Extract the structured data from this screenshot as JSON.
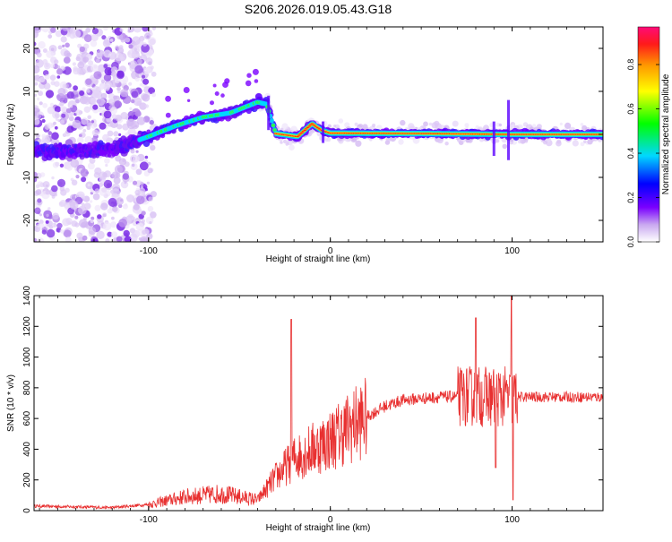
{
  "title": "S206.2026.019.05.43.G18",
  "charts": [
    {
      "type": "heatmap",
      "xlabel": "Height of straight line (km)",
      "ylabel": "Frequency (Hz)",
      "xlim": [
        -163,
        150
      ],
      "ylim": [
        -25,
        25
      ],
      "xticks": [
        -100,
        0,
        100
      ],
      "yticks": [
        -20,
        -10,
        0,
        10,
        20
      ],
      "colorbar": {
        "label": "Normalized spectral amplitude",
        "range": [
          0,
          0.97
        ],
        "ticks": [
          "0.0",
          "0.2",
          "0.4",
          "0.6",
          "0.8"
        ]
      },
      "ridge": [
        {
          "x": -163,
          "y": -4
        },
        {
          "x": -120,
          "y": -3.5
        },
        {
          "x": -100,
          "y": -0.5
        },
        {
          "x": -85,
          "y": 2
        },
        {
          "x": -70,
          "y": 4
        },
        {
          "x": -55,
          "y": 5
        },
        {
          "x": -40,
          "y": 7.5
        },
        {
          "x": -35,
          "y": 7
        },
        {
          "x": -30,
          "y": 0.2
        },
        {
          "x": -18,
          "y": -0.5
        },
        {
          "x": -10,
          "y": 2.5
        },
        {
          "x": -5,
          "y": 1
        },
        {
          "x": 0,
          "y": 0.3
        },
        {
          "x": 50,
          "y": 0.2
        },
        {
          "x": 100,
          "y": 0
        },
        {
          "x": 150,
          "y": 0
        }
      ]
    },
    {
      "type": "line",
      "xlabel": "Height of straight line (km)",
      "ylabel": "SNR (10 * v/v)",
      "xlim": [
        -163,
        150
      ],
      "ylim": [
        0,
        1400
      ],
      "xticks": [
        -100,
        0,
        100
      ],
      "yticks": [
        0,
        200,
        400,
        600,
        800,
        1000,
        1200,
        1400
      ],
      "color": "#e83030",
      "envelope": [
        {
          "x": -163,
          "y": 30
        },
        {
          "x": -120,
          "y": 20
        },
        {
          "x": -100,
          "y": 40
        },
        {
          "x": -80,
          "y": 90
        },
        {
          "x": -60,
          "y": 110
        },
        {
          "x": -40,
          "y": 70
        },
        {
          "x": -30,
          "y": 220
        },
        {
          "x": -20,
          "y": 340
        },
        {
          "x": -10,
          "y": 400
        },
        {
          "x": 0,
          "y": 460
        },
        {
          "x": 10,
          "y": 540
        },
        {
          "x": 20,
          "y": 610
        },
        {
          "x": 30,
          "y": 680
        },
        {
          "x": 40,
          "y": 720
        },
        {
          "x": 60,
          "y": 740
        },
        {
          "x": 80,
          "y": 745
        },
        {
          "x": 100,
          "y": 740
        },
        {
          "x": 120,
          "y": 740
        },
        {
          "x": 150,
          "y": 740
        }
      ],
      "spikes": [
        {
          "x": -21.5,
          "y": 1245
        },
        {
          "x": 80,
          "y": 1255
        },
        {
          "x": 99.5,
          "y": 1400
        },
        {
          "x": 100.5,
          "y": 70
        },
        {
          "x": 91,
          "y": 280
        }
      ]
    }
  ]
}
